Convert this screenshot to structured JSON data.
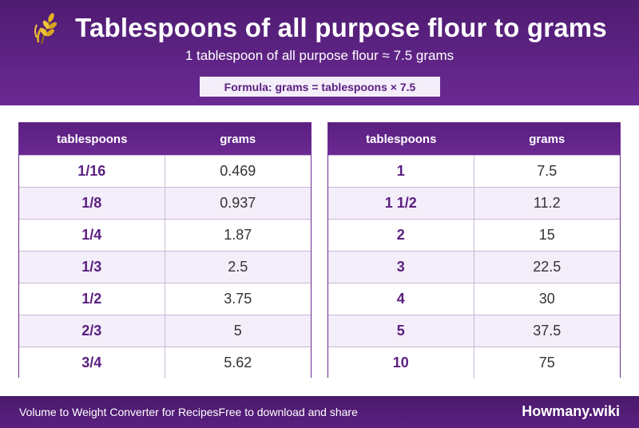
{
  "header": {
    "icon": "wheat-icon",
    "title": "Tablespoons of all purpose flour to grams",
    "subtitle": "1 tablespoon of all purpose flour ≈ 7.5 grams",
    "formula": "Formula: grams = tablespoons × 7.5"
  },
  "colors": {
    "primary": "#5e2384",
    "accent_text": "#5a1f80",
    "row_alt": "#f3eef9",
    "border": "#6d2c94"
  },
  "tables": [
    {
      "headers": [
        "tablespoons",
        "grams"
      ],
      "rows": [
        [
          "1/16",
          "0.469"
        ],
        [
          "1/8",
          "0.937"
        ],
        [
          "1/4",
          "1.87"
        ],
        [
          "1/3",
          "2.5"
        ],
        [
          "1/2",
          "3.75"
        ],
        [
          "2/3",
          "5"
        ],
        [
          "3/4",
          "5.62"
        ]
      ]
    },
    {
      "headers": [
        "tablespoons",
        "grams"
      ],
      "rows": [
        [
          "1",
          "7.5"
        ],
        [
          "1 1/2",
          "11.2"
        ],
        [
          "2",
          "15"
        ],
        [
          "3",
          "22.5"
        ],
        [
          "4",
          "30"
        ],
        [
          "5",
          "37.5"
        ],
        [
          "10",
          "75"
        ]
      ]
    }
  ],
  "footer": {
    "left_text": "Volume to Weight Converter for RecipesFree to download and share",
    "brand": "Howmany.wiki"
  }
}
